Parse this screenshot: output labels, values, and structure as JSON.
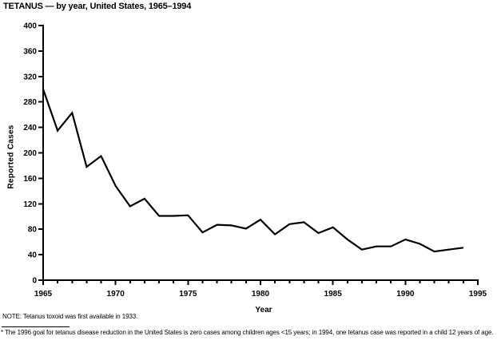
{
  "page": {
    "title": "TETANUS — by year, United States, 1965–1994",
    "note": "NOTE: Tetanus toxoid was first available in 1933.",
    "footnote_marker": "*",
    "footnote_text": "The 1996 goal for tetanus disease reduction in the United States is zero cases among children ages <15 years; in 1994, one tetanus case was reported in a child 12 years of age."
  },
  "chart_data": {
    "type": "line",
    "title": "TETANUS — by year, United States, 1965–1994",
    "xlabel": "Year",
    "ylabel": "Reported Cases",
    "x": [
      1965,
      1966,
      1967,
      1968,
      1969,
      1970,
      1971,
      1972,
      1973,
      1974,
      1975,
      1976,
      1977,
      1978,
      1979,
      1980,
      1981,
      1982,
      1983,
      1984,
      1985,
      1986,
      1987,
      1988,
      1989,
      1990,
      1991,
      1992,
      1993,
      1994
    ],
    "values": [
      300,
      235,
      263,
      178,
      195,
      148,
      116,
      128,
      101,
      101,
      102,
      75,
      87,
      86,
      81,
      95,
      72,
      88,
      91,
      74,
      83,
      64,
      48,
      53,
      53,
      64,
      57,
      45,
      48,
      51
    ],
    "xlim": [
      1965,
      1995
    ],
    "ylim": [
      0,
      400
    ],
    "ytick_step": 40,
    "xtick_labeled_step": 5,
    "xtick_minor_step": 1,
    "grid": false,
    "legend_position": "none",
    "line_color": "#000000",
    "axis_color": "#000000",
    "background_color": "#ffffff"
  }
}
